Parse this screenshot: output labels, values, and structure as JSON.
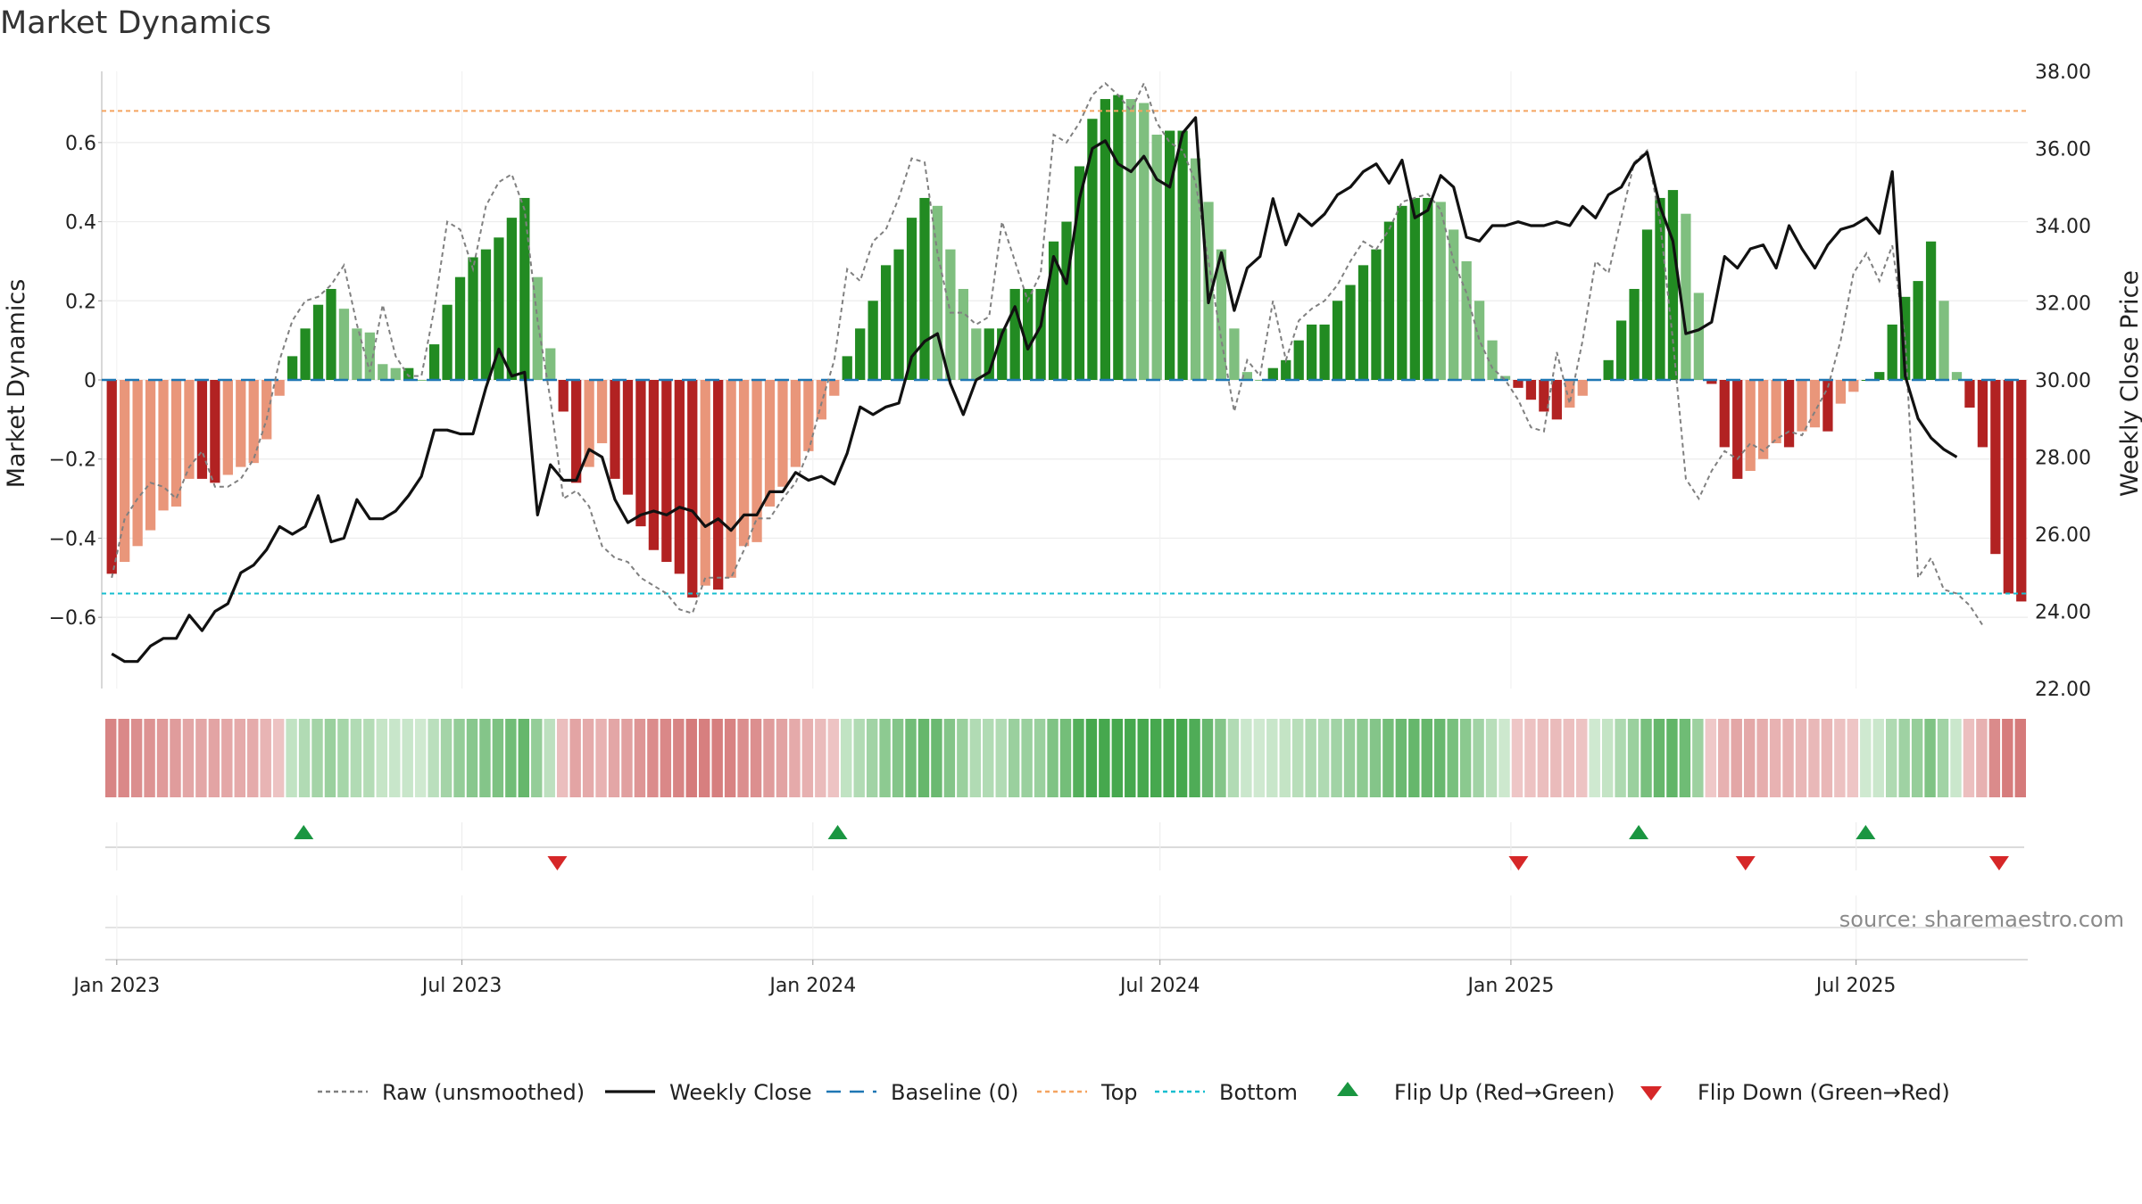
{
  "title": "Market Dynamics",
  "source": "source: sharemaestro.com",
  "chart_data": {
    "type": "bar",
    "ylabel_left": "Market Dynamics",
    "ylabel_right": "Weekly Close Price",
    "ylim_left": [
      -0.78,
      0.78
    ],
    "ylim_right": [
      22.0,
      38.0
    ],
    "yticks_left": [
      "0.6",
      "0.4",
      "0.2",
      "0",
      "−0.2",
      "−0.4",
      "−0.6"
    ],
    "yticks_left_values": [
      0.6,
      0.4,
      0.2,
      0,
      -0.2,
      -0.4,
      -0.6
    ],
    "yticks_right": [
      "38.00",
      "36.00",
      "34.00",
      "32.00",
      "30.00",
      "28.00",
      "26.00",
      "24.00",
      "22.00"
    ],
    "yticks_right_values": [
      38,
      36,
      34,
      32,
      30,
      28,
      26,
      24,
      22
    ],
    "x_start": "2022-12-26",
    "x_end": "2025-09-29",
    "xticks": [
      {
        "label": "Jan 2023",
        "date": "2023-01-01"
      },
      {
        "label": "Jul 2023",
        "date": "2023-07-01"
      },
      {
        "label": "Jan 2024",
        "date": "2024-01-01"
      },
      {
        "label": "Jul 2024",
        "date": "2024-07-01"
      },
      {
        "label": "Jan 2025",
        "date": "2025-01-01"
      },
      {
        "label": "Jul 2025",
        "date": "2025-07-01"
      }
    ],
    "top_level": 0.68,
    "bottom_level": -0.54,
    "baseline": 0,
    "smoothed": [
      -0.49,
      -0.46,
      -0.42,
      -0.38,
      -0.33,
      -0.32,
      -0.25,
      -0.25,
      -0.26,
      -0.24,
      -0.22,
      -0.21,
      -0.15,
      -0.04,
      0.06,
      0.13,
      0.19,
      0.23,
      0.18,
      0.13,
      0.12,
      0.04,
      0.03,
      0.03,
      0.0,
      0.09,
      0.19,
      0.26,
      0.31,
      0.33,
      0.36,
      0.41,
      0.46,
      0.26,
      0.08,
      -0.08,
      -0.26,
      -0.22,
      -0.16,
      -0.25,
      -0.29,
      -0.37,
      -0.43,
      -0.46,
      -0.49,
      -0.55,
      -0.52,
      -0.53,
      -0.5,
      -0.42,
      -0.41,
      -0.32,
      -0.27,
      -0.22,
      -0.18,
      -0.1,
      -0.04,
      0.06,
      0.13,
      0.2,
      0.29,
      0.33,
      0.41,
      0.46,
      0.44,
      0.33,
      0.23,
      0.13,
      0.13,
      0.13,
      0.23,
      0.23,
      0.23,
      0.35,
      0.4,
      0.54,
      0.66,
      0.71,
      0.72,
      0.71,
      0.7,
      0.62,
      0.63,
      0.63,
      0.56,
      0.45,
      0.33,
      0.13,
      0.02,
      0.0,
      0.03,
      0.05,
      0.1,
      0.14,
      0.14,
      0.2,
      0.24,
      0.29,
      0.33,
      0.4,
      0.44,
      0.46,
      0.46,
      0.45,
      0.38,
      0.3,
      0.2,
      0.1,
      0.01,
      -0.02,
      -0.05,
      -0.08,
      -0.1,
      -0.07,
      -0.04,
      0.0,
      0.05,
      0.15,
      0.23,
      0.38,
      0.46,
      0.48,
      0.42,
      0.22,
      -0.01,
      -0.17,
      -0.25,
      -0.23,
      -0.2,
      -0.16,
      -0.17,
      -0.13,
      -0.12,
      -0.13,
      -0.06,
      -0.03,
      0.0,
      0.02,
      0.14,
      0.21,
      0.25,
      0.35,
      0.2,
      0.02,
      -0.07,
      -0.17,
      -0.44,
      -0.54,
      -0.56
    ],
    "raw": [
      -0.5,
      -0.35,
      -0.3,
      -0.26,
      -0.27,
      -0.3,
      -0.22,
      -0.18,
      -0.27,
      -0.27,
      -0.25,
      -0.2,
      -0.1,
      0.05,
      0.15,
      0.2,
      0.21,
      0.24,
      0.29,
      0.14,
      0.02,
      0.19,
      0.06,
      0.01,
      0.01,
      0.18,
      0.4,
      0.38,
      0.28,
      0.44,
      0.5,
      0.52,
      0.43,
      0.15,
      -0.05,
      -0.3,
      -0.28,
      -0.32,
      -0.42,
      -0.45,
      -0.46,
      -0.5,
      -0.52,
      -0.54,
      -0.58,
      -0.59,
      -0.5,
      -0.5,
      -0.5,
      -0.43,
      -0.35,
      -0.35,
      -0.3,
      -0.26,
      -0.18,
      -0.06,
      0.05,
      0.28,
      0.25,
      0.35,
      0.38,
      0.46,
      0.56,
      0.55,
      0.32,
      0.17,
      0.17,
      0.14,
      0.16,
      0.4,
      0.3,
      0.2,
      0.27,
      0.62,
      0.6,
      0.65,
      0.72,
      0.75,
      0.72,
      0.68,
      0.75,
      0.65,
      0.6,
      0.58,
      0.5,
      0.3,
      0.1,
      -0.08,
      0.05,
      0.01,
      0.2,
      0.05,
      0.15,
      0.18,
      0.2,
      0.24,
      0.3,
      0.35,
      0.33,
      0.38,
      0.45,
      0.46,
      0.47,
      0.43,
      0.3,
      0.22,
      0.1,
      0.03,
      0.0,
      -0.05,
      -0.12,
      -0.13,
      0.07,
      -0.06,
      0.1,
      0.3,
      0.27,
      0.41,
      0.55,
      0.58,
      0.4,
      0.1,
      -0.25,
      -0.3,
      -0.23,
      -0.18,
      -0.2,
      -0.16,
      -0.18,
      -0.15,
      -0.13,
      -0.14,
      -0.08,
      -0.02,
      0.1,
      0.27,
      0.32,
      0.25,
      0.34,
      0.1,
      -0.5,
      -0.45,
      -0.53,
      -0.54,
      -0.57,
      -0.62
    ],
    "close": [
      22.9,
      22.7,
      22.7,
      23.1,
      23.3,
      23.3,
      23.9,
      23.5,
      24.0,
      24.2,
      25.0,
      25.2,
      25.6,
      26.2,
      26.0,
      26.2,
      27.0,
      25.8,
      25.9,
      26.9,
      26.4,
      26.4,
      26.6,
      27.0,
      27.5,
      28.7,
      28.7,
      28.6,
      28.6,
      29.8,
      30.8,
      30.1,
      30.2,
      26.5,
      27.8,
      27.4,
      27.4,
      28.2,
      28.0,
      26.9,
      26.3,
      26.5,
      26.6,
      26.5,
      26.7,
      26.6,
      26.2,
      26.4,
      26.1,
      26.5,
      26.5,
      27.1,
      27.1,
      27.6,
      27.4,
      27.5,
      27.3,
      28.1,
      29.3,
      29.1,
      29.3,
      29.4,
      30.6,
      31.0,
      31.2,
      29.9,
      29.1,
      30.0,
      30.2,
      31.2,
      31.9,
      30.8,
      31.4,
      33.2,
      32.5,
      34.7,
      36.0,
      36.2,
      35.6,
      35.4,
      35.8,
      35.2,
      35.0,
      36.4,
      36.8,
      32.0,
      33.3,
      31.8,
      32.9,
      33.2,
      34.7,
      33.5,
      34.3,
      34.0,
      34.3,
      34.8,
      35.0,
      35.4,
      35.6,
      35.1,
      35.7,
      34.2,
      34.4,
      35.3,
      35.0,
      33.7,
      33.6,
      34.0,
      34.0,
      34.1,
      34.0,
      34.0,
      34.1,
      34.0,
      34.5,
      34.2,
      34.8,
      35.0,
      35.6,
      35.9,
      34.5,
      33.6,
      31.2,
      31.3,
      31.5,
      33.2,
      32.9,
      33.4,
      33.5,
      32.9,
      34.0,
      33.4,
      32.9,
      33.5,
      33.9,
      34.0,
      34.2,
      33.8,
      35.4,
      30.1,
      29.0,
      28.5,
      28.2,
      28.0
    ],
    "strip_colors": {
      "strong_red": "#d37474",
      "light_red": "#efc9c9",
      "strong_green": "#46a84e",
      "light_green": "#cfe9d0"
    },
    "bar_colors": {
      "strong_green": "#228b22",
      "light_green": "#7fbf7f",
      "strong_red": "#b22222",
      "light_red": "#e9967a"
    },
    "line_colors": {
      "raw": "#808080",
      "close": "#111111",
      "baseline": "#1f77b4",
      "top": "#f4a460",
      "bottom": "#17becf"
    },
    "flip_up_color": "#1a9641",
    "flip_down_color": "#d62728",
    "flips_up": [
      "2023-04-09",
      "2024-01-14",
      "2025-03-09",
      "2025-07-06"
    ],
    "flips_down": [
      "2023-08-20",
      "2025-01-05",
      "2025-05-04",
      "2025-09-14"
    ],
    "legend": [
      {
        "label": "Raw (unsmoothed)",
        "kind": "dotted",
        "color": "#808080"
      },
      {
        "label": "Weekly Close",
        "kind": "solid",
        "color": "#111111"
      },
      {
        "label": "Baseline (0)",
        "kind": "dashed",
        "color": "#1f77b4"
      },
      {
        "label": "Top",
        "kind": "dotted",
        "color": "#f4a460"
      },
      {
        "label": "Bottom",
        "kind": "dotted",
        "color": "#17becf"
      },
      {
        "label": "Flip Up (Red→Green)",
        "kind": "tri-up",
        "color": "#1a9641"
      },
      {
        "label": "Flip Down (Green→Red)",
        "kind": "tri-down",
        "color": "#d62728"
      }
    ]
  }
}
